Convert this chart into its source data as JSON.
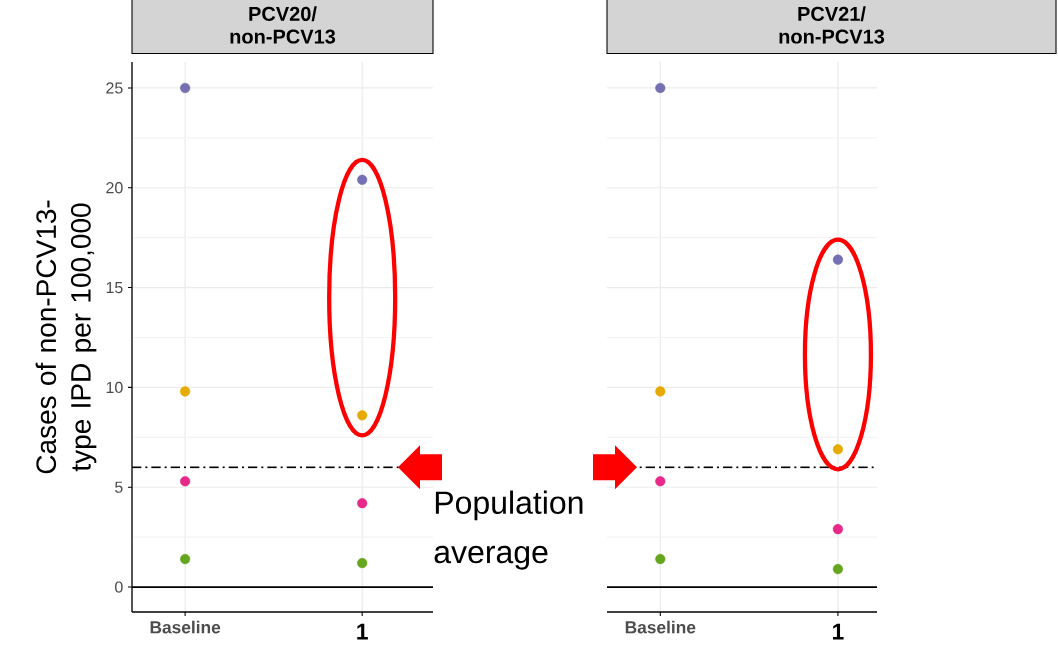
{
  "chart_data": [
    {
      "type": "scatter",
      "title": "PCV20/ non-PCV13",
      "ylabel": "Cases of non-PCV13-type IPD per 100,000",
      "categories": [
        "Baseline",
        "1"
      ],
      "series": [
        {
          "color": "#7570b3",
          "values": [
            25,
            20.4
          ]
        },
        {
          "color": "#e6ab02",
          "values": [
            9.8,
            8.6
          ]
        },
        {
          "color": "#e7298a",
          "values": [
            5.3,
            4.2
          ]
        },
        {
          "color": "#66a61e",
          "values": [
            1.4,
            1.2
          ]
        }
      ],
      "ylim": [
        -1.25,
        26.3
      ],
      "yticks": [
        0,
        5,
        10,
        15,
        20,
        25
      ],
      "grid": true,
      "marker": "circle",
      "ref_lines": [
        {
          "axis": "y",
          "value": 6,
          "label": "Population average",
          "color": "#000000",
          "line_style": "dashed"
        },
        {
          "axis": "y",
          "value": 0,
          "color": "#000000",
          "line_style": "solid"
        }
      ]
    },
    {
      "type": "scatter",
      "title": "PCV21/ non-PCV13",
      "categories": [
        "Baseline",
        "1"
      ],
      "series": [
        {
          "color": "#7570b3",
          "values": [
            25,
            16.4
          ]
        },
        {
          "color": "#e6ab02",
          "values": [
            9.8,
            6.9
          ]
        },
        {
          "color": "#e7298a",
          "values": [
            5.3,
            2.9
          ]
        },
        {
          "color": "#66a61e",
          "values": [
            1.4,
            0.9
          ]
        }
      ],
      "ylim": [
        -1.25,
        26.3
      ],
      "yticks": [
        0,
        5,
        10,
        15,
        20,
        25
      ],
      "grid": true,
      "marker": "circle",
      "tick_labels": "x",
      "ref_lines": [
        {
          "axis": "y",
          "value": 6,
          "color": "#000000",
          "line_style": "dashed"
        },
        {
          "axis": "y",
          "value": 0,
          "color": "#000000",
          "line_style": "solid"
        }
      ]
    }
  ]
}
